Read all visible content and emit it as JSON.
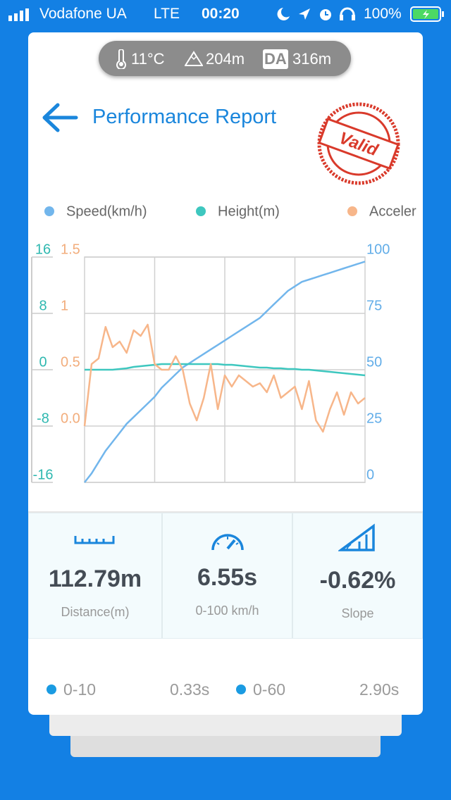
{
  "status_bar": {
    "carrier": "Vodafone UA",
    "network": "LTE",
    "time": "00:20",
    "battery": "100%"
  },
  "conditions": {
    "temperature": "11°C",
    "altitude": "204m",
    "da_badge": "DA",
    "density_altitude": "316m"
  },
  "header": {
    "title": "Performance Report",
    "stamp": "Valid"
  },
  "chart_data": {
    "type": "line",
    "series": [
      {
        "name": "Speed(km/h)",
        "color": "#72b6ec",
        "axis": "y2",
        "values": [
          0,
          4,
          9,
          14,
          18,
          22,
          26,
          29,
          32,
          35,
          38,
          42,
          45,
          48,
          51,
          53,
          55,
          57,
          59,
          61,
          63,
          65,
          67,
          69,
          71,
          73,
          76,
          79,
          82,
          85,
          87,
          89,
          90,
          91,
          92,
          93,
          94,
          95,
          96,
          97,
          98
        ]
      },
      {
        "name": "Height(m)",
        "color": "#3ec7bf",
        "axis": "y",
        "values": [
          0,
          0,
          0,
          0,
          0,
          0.1,
          0.2,
          0.4,
          0.5,
          0.6,
          0.7,
          0.8,
          0.8,
          0.8,
          0.8,
          0.8,
          0.8,
          0.8,
          0.8,
          0.8,
          0.7,
          0.7,
          0.6,
          0.5,
          0.4,
          0.3,
          0.3,
          0.2,
          0.2,
          0.1,
          0.1,
          0,
          0,
          -0.1,
          -0.2,
          -0.3,
          -0.4,
          -0.5,
          -0.6,
          -0.7,
          -0.8
        ]
      },
      {
        "name": "Acceler",
        "color": "#f7b68a",
        "axis": "y3",
        "values": [
          0.0,
          0.55,
          0.6,
          0.88,
          0.7,
          0.75,
          0.65,
          0.85,
          0.8,
          0.9,
          0.55,
          0.5,
          0.5,
          0.62,
          0.5,
          0.2,
          0.05,
          0.25,
          0.55,
          0.15,
          0.45,
          0.35,
          0.45,
          0.4,
          0.35,
          0.38,
          0.3,
          0.45,
          0.25,
          0.3,
          0.35,
          0.15,
          0.4,
          0.05,
          -0.05,
          0.15,
          0.3,
          0.1,
          0.3,
          0.2,
          0.25
        ]
      }
    ],
    "ylim": [
      -16,
      16
    ],
    "yticks": [
      -16,
      -8,
      0,
      8,
      16
    ],
    "ytick_color": "#2fb8b0",
    "y3lim": [
      -0.5,
      1.5
    ],
    "y3ticks": [
      {
        "value": 0,
        "label": "0.0"
      },
      0.5,
      1,
      1.5
    ],
    "y3tick_color": "#f2ad7c",
    "y2lim": [
      0,
      100
    ],
    "y2ticks": [
      0,
      25,
      50,
      75,
      100
    ],
    "y2tick_color": "#62ade8",
    "grid": true
  },
  "stats": [
    {
      "value": "112.79m",
      "label": "Distance(m)"
    },
    {
      "value": "6.55s",
      "label": "0-100 km/h"
    },
    {
      "value": "-0.62%",
      "label": "Slope"
    }
  ],
  "splits": [
    {
      "label": "0-10",
      "time": "0.33s"
    },
    {
      "label": "0-60",
      "time": "2.90s"
    }
  ]
}
